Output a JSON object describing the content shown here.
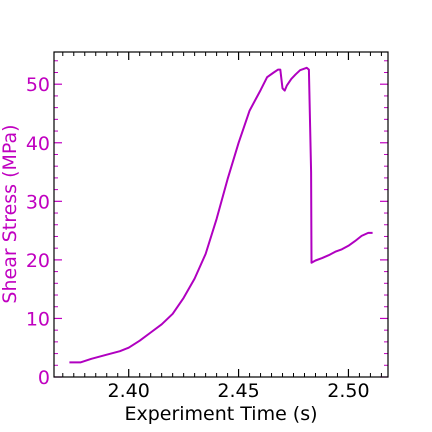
{
  "chart_data": {
    "type": "line",
    "title": "",
    "xlabel": "Experiment Time (s)",
    "ylabel": "Shear Stress (MPa)",
    "xlim": [
      2.366,
      2.518
    ],
    "ylim": [
      0,
      55.5
    ],
    "xticks": [
      2.4,
      2.45,
      2.5
    ],
    "xtick_labels": [
      "2.40",
      "2.45",
      "2.50"
    ],
    "xminor_step": 0.005,
    "yticks": [
      0,
      10,
      20,
      30,
      40,
      50
    ],
    "ytick_labels": [
      "0",
      "10",
      "20",
      "30",
      "40",
      "50"
    ],
    "yminor_step": 2,
    "grid": false,
    "legend": "none",
    "ylabel_color": "#c000c0",
    "axis_color": "#c000c0",
    "series": [
      {
        "color": "#b000c0",
        "points": [
          [
            2.373,
            2.5
          ],
          [
            2.378,
            2.5
          ],
          [
            2.383,
            3.1
          ],
          [
            2.39,
            3.8
          ],
          [
            2.396,
            4.4
          ],
          [
            2.4,
            5.0
          ],
          [
            2.405,
            6.2
          ],
          [
            2.41,
            7.6
          ],
          [
            2.415,
            9.0
          ],
          [
            2.42,
            10.8
          ],
          [
            2.425,
            13.5
          ],
          [
            2.43,
            16.8
          ],
          [
            2.435,
            21.0
          ],
          [
            2.44,
            27.0
          ],
          [
            2.445,
            33.8
          ],
          [
            2.45,
            40.0
          ],
          [
            2.455,
            45.5
          ],
          [
            2.46,
            49.0
          ],
          [
            2.463,
            51.2
          ],
          [
            2.466,
            52.0
          ],
          [
            2.468,
            52.5
          ],
          [
            2.469,
            52.5
          ],
          [
            2.47,
            49.3
          ],
          [
            2.471,
            48.9
          ],
          [
            2.472,
            49.8
          ],
          [
            2.474,
            50.9
          ],
          [
            2.476,
            51.7
          ],
          [
            2.478,
            52.4
          ],
          [
            2.481,
            52.8
          ],
          [
            2.482,
            52.5
          ],
          [
            2.483,
            35.0
          ],
          [
            2.4832,
            19.5
          ],
          [
            2.485,
            19.9
          ],
          [
            2.488,
            20.3
          ],
          [
            2.491,
            20.8
          ],
          [
            2.494,
            21.4
          ],
          [
            2.497,
            21.8
          ],
          [
            2.5,
            22.4
          ],
          [
            2.503,
            23.2
          ],
          [
            2.506,
            24.1
          ],
          [
            2.509,
            24.6
          ],
          [
            2.511,
            24.6
          ]
        ]
      }
    ]
  }
}
